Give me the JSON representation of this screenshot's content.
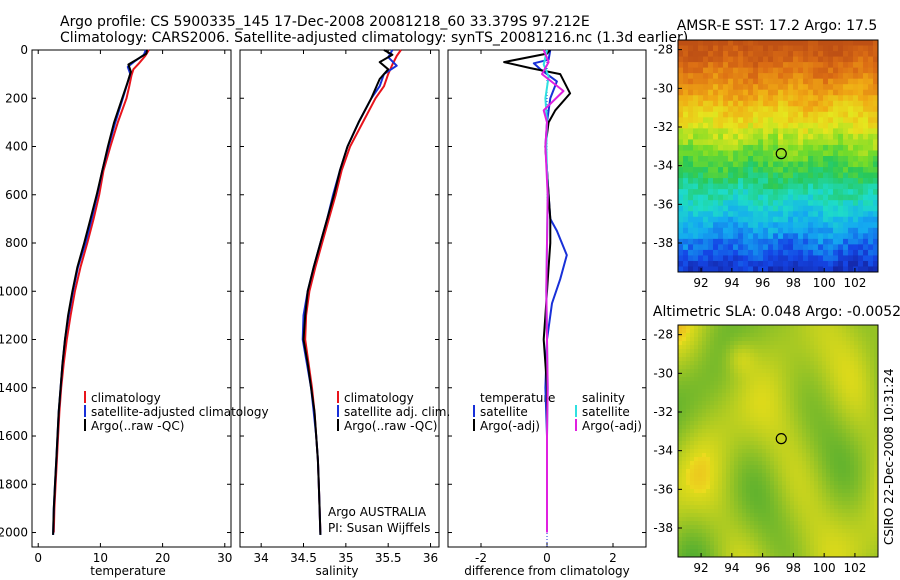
{
  "header": {
    "line1": "Argo profile: CS 5900335_145 17-Dec-2008 20081218_60 33.379S 97.212E",
    "line2": "Climatology: CARS2006. Satellite-adjusted climatology: synTS_20081216.nc (1.3d earlier)"
  },
  "side_text": "CSIRO 22-Dec-2008 10:31:24",
  "colors": {
    "climatology": "#e8141c",
    "satellite": "#1830d8",
    "argo": "#000000",
    "satellite_sal": "#30e0e0",
    "argo_sal": "#e020e0"
  },
  "chart_data": [
    {
      "type": "line",
      "id": "temperature",
      "xlabel": "temperature",
      "xlim": [
        -1,
        31
      ],
      "ylim": [
        2060,
        0
      ],
      "xticks": [
        0,
        10,
        20,
        30
      ],
      "yticks": [
        0,
        200,
        400,
        600,
        800,
        1000,
        1200,
        1400,
        1600,
        1800,
        2000
      ],
      "legend": [
        "climatology",
        "satellite-adjusted climatology",
        "Argo(..raw -QC)"
      ],
      "series": [
        {
          "name": "climatology",
          "color_key": "climatology",
          "points": [
            [
              17.8,
              0
            ],
            [
              17.2,
              25
            ],
            [
              16.2,
              55
            ],
            [
              15.3,
              80
            ],
            [
              15,
              105
            ],
            [
              14.6,
              155
            ],
            [
              14.2,
              200
            ],
            [
              12.8,
              300
            ],
            [
              11.6,
              400
            ],
            [
              10.5,
              500
            ],
            [
              9.8,
              600
            ],
            [
              8.9,
              700
            ],
            [
              7.9,
              800
            ],
            [
              6.8,
              900
            ],
            [
              5.9,
              1000
            ],
            [
              5.2,
              1100
            ],
            [
              4.6,
              1200
            ],
            [
              4.1,
              1300
            ],
            [
              3.7,
              1400
            ],
            [
              3.4,
              1500
            ],
            [
              3.2,
              1600
            ],
            [
              3,
              1700
            ],
            [
              2.8,
              1800
            ],
            [
              2.6,
              1900
            ],
            [
              2.5,
              2000
            ]
          ]
        },
        {
          "name": "satellite-adjusted climatology",
          "color_key": "satellite",
          "points": [
            [
              17.3,
              0
            ],
            [
              17,
              20
            ],
            [
              15.6,
              45
            ],
            [
              14.4,
              70
            ],
            [
              14.8,
              100
            ],
            [
              14.2,
              150
            ],
            [
              13.6,
              200
            ],
            [
              12.4,
              300
            ],
            [
              11.3,
              400
            ],
            [
              10.3,
              500
            ],
            [
              9.5,
              600
            ],
            [
              8.6,
              700
            ],
            [
              7.6,
              800
            ],
            [
              6.4,
              900
            ],
            [
              5.6,
              1000
            ],
            [
              4.9,
              1100
            ],
            [
              4.3,
              1200
            ],
            [
              3.9,
              1300
            ],
            [
              3.6,
              1400
            ],
            [
              3.3,
              1500
            ],
            [
              3.1,
              1600
            ],
            [
              2.9,
              1700
            ],
            [
              2.7,
              1800
            ],
            [
              2.5,
              1900
            ],
            [
              2.4,
              2010
            ]
          ]
        },
        {
          "name": "Argo(..raw -QC)",
          "color_key": "argo",
          "points": [
            [
              17.5,
              0
            ],
            [
              17.4,
              15
            ],
            [
              15.8,
              40
            ],
            [
              14.5,
              60
            ],
            [
              14.9,
              90
            ],
            [
              14.3,
              140
            ],
            [
              13.5,
              200
            ],
            [
              12.2,
              300
            ],
            [
              11.2,
              400
            ],
            [
              10.3,
              500
            ],
            [
              9.4,
              600
            ],
            [
              8.4,
              700
            ],
            [
              7.4,
              800
            ],
            [
              6.3,
              900
            ],
            [
              5.5,
              1000
            ],
            [
              4.8,
              1100
            ],
            [
              4.3,
              1200
            ],
            [
              3.9,
              1300
            ],
            [
              3.6,
              1400
            ],
            [
              3.3,
              1500
            ],
            [
              3.1,
              1600
            ],
            [
              2.9,
              1700
            ],
            [
              2.7,
              1800
            ],
            [
              2.5,
              1900
            ],
            [
              2.4,
              2010
            ]
          ]
        }
      ]
    },
    {
      "type": "line",
      "id": "salinity",
      "xlabel": "salinity",
      "xlim": [
        33.75,
        36.1
      ],
      "ylim": [
        2060,
        0
      ],
      "xticks": [
        34,
        34.5,
        35,
        35.5,
        36
      ],
      "legend": [
        "climatology",
        "satellite adj. clim.",
        "Argo(..raw -QC)"
      ],
      "annotation": [
        "Argo AUSTRALIA",
        "PI: Susan Wijffels"
      ],
      "series": [
        {
          "name": "climatology",
          "color_key": "climatology",
          "points": [
            [
              35.65,
              0
            ],
            [
              35.6,
              25
            ],
            [
              35.55,
              60
            ],
            [
              35.5,
              100
            ],
            [
              35.45,
              150
            ],
            [
              35.35,
              200
            ],
            [
              35.2,
              300
            ],
            [
              35.05,
              400
            ],
            [
              34.95,
              500
            ],
            [
              34.88,
              600
            ],
            [
              34.8,
              700
            ],
            [
              34.72,
              800
            ],
            [
              34.64,
              900
            ],
            [
              34.57,
              1000
            ],
            [
              34.53,
              1100
            ],
            [
              34.52,
              1200
            ],
            [
              34.56,
              1300
            ],
            [
              34.6,
              1400
            ],
            [
              34.63,
              1500
            ],
            [
              34.65,
              1600
            ],
            [
              34.67,
              1700
            ],
            [
              34.68,
              1800
            ],
            [
              34.69,
              1900
            ],
            [
              34.7,
              2000
            ]
          ]
        },
        {
          "name": "satellite adj. clim.",
          "color_key": "satellite",
          "points": [
            [
              35.55,
              0
            ],
            [
              35.5,
              30
            ],
            [
              35.6,
              65
            ],
            [
              35.45,
              100
            ],
            [
              35.4,
              150
            ],
            [
              35.3,
              200
            ],
            [
              35.15,
              300
            ],
            [
              35.02,
              400
            ],
            [
              34.93,
              500
            ],
            [
              34.85,
              600
            ],
            [
              34.78,
              700
            ],
            [
              34.7,
              800
            ],
            [
              34.62,
              900
            ],
            [
              34.55,
              1000
            ],
            [
              34.5,
              1100
            ],
            [
              34.49,
              1200
            ],
            [
              34.54,
              1300
            ],
            [
              34.59,
              1400
            ],
            [
              34.62,
              1500
            ],
            [
              34.65,
              1600
            ],
            [
              34.67,
              1700
            ],
            [
              34.68,
              1800
            ],
            [
              34.69,
              1900
            ],
            [
              34.7,
              2010
            ]
          ]
        },
        {
          "name": "Argo(..raw -QC)",
          "color_key": "argo",
          "points": [
            [
              35.45,
              0
            ],
            [
              35.55,
              20
            ],
            [
              35.4,
              50
            ],
            [
              35.5,
              80
            ],
            [
              35.4,
              120
            ],
            [
              35.35,
              160
            ],
            [
              35.3,
              200
            ],
            [
              35.15,
              300
            ],
            [
              35.02,
              400
            ],
            [
              34.93,
              500
            ],
            [
              34.86,
              600
            ],
            [
              34.78,
              700
            ],
            [
              34.7,
              800
            ],
            [
              34.62,
              900
            ],
            [
              34.55,
              1000
            ],
            [
              34.52,
              1100
            ],
            [
              34.5,
              1200
            ],
            [
              34.55,
              1300
            ],
            [
              34.59,
              1400
            ],
            [
              34.63,
              1500
            ],
            [
              34.65,
              1600
            ],
            [
              34.67,
              1700
            ],
            [
              34.68,
              1800
            ],
            [
              34.69,
              1900
            ],
            [
              34.7,
              2010
            ]
          ]
        }
      ]
    },
    {
      "type": "line",
      "id": "difference",
      "xlabel": "difference from climatology",
      "xlim": [
        -3,
        3
      ],
      "ylim": [
        2060,
        0
      ],
      "xticks": [
        -2,
        0,
        2
      ],
      "legend_temp": [
        "temperature",
        "satellite",
        "Argo(-adj)"
      ],
      "legend_sal": [
        "salinity",
        "satellite",
        "Argo(-adj)"
      ],
      "series": [
        {
          "name": "temperature satellite",
          "color_key": "satellite",
          "points": [
            [
              0.1,
              0
            ],
            [
              0.05,
              40
            ],
            [
              -0.4,
              55
            ],
            [
              -0.2,
              80
            ],
            [
              0.3,
              130
            ],
            [
              0.1,
              200
            ],
            [
              0,
              300
            ],
            [
              -0.05,
              400
            ],
            [
              0,
              500
            ],
            [
              0.05,
              600
            ],
            [
              0.1,
              700
            ],
            [
              0.3,
              750
            ],
            [
              0.6,
              850
            ],
            [
              0.4,
              950
            ],
            [
              0.15,
              1050
            ],
            [
              0,
              1200
            ],
            [
              -0.05,
              1400
            ],
            [
              0,
              1600
            ],
            [
              0,
              1800
            ],
            [
              0,
              2000
            ]
          ]
        },
        {
          "name": "temperature Argo(-adj)",
          "color_key": "argo",
          "points": [
            [
              0.1,
              0
            ],
            [
              0,
              15
            ],
            [
              -1.3,
              50
            ],
            [
              -0.5,
              75
            ],
            [
              0.4,
              100
            ],
            [
              0.7,
              180
            ],
            [
              0.25,
              250
            ],
            [
              0.05,
              300
            ],
            [
              -0.05,
              400
            ],
            [
              0,
              500
            ],
            [
              0.05,
              600
            ],
            [
              0.1,
              700
            ],
            [
              0.1,
              800
            ],
            [
              0.05,
              900
            ],
            [
              0,
              1000
            ],
            [
              -0.05,
              1100
            ],
            [
              -0.1,
              1200
            ],
            [
              -0.05,
              1300
            ],
            [
              0,
              1400
            ],
            [
              0,
              1600
            ],
            [
              0,
              1800
            ],
            [
              0,
              2000
            ]
          ]
        },
        {
          "name": "salinity satellite",
          "color_key": "satellite_sal",
          "points": [
            [
              0,
              0
            ],
            [
              -0.1,
              60
            ],
            [
              0.05,
              110
            ],
            [
              -0.05,
              200
            ],
            [
              0,
              300
            ],
            [
              -0.02,
              400
            ],
            [
              0.02,
              600
            ],
            [
              0,
              800
            ],
            [
              -0.02,
              1000
            ],
            [
              0,
              1200
            ],
            [
              0.02,
              1400
            ],
            [
              0,
              1600
            ],
            [
              0,
              1800
            ],
            [
              0,
              2000
            ]
          ]
        },
        {
          "name": "salinity Argo(-adj)",
          "color_key": "argo_sal",
          "points": [
            [
              -0.1,
              0
            ],
            [
              0.05,
              50
            ],
            [
              -0.15,
              100
            ],
            [
              0.5,
              170
            ],
            [
              -0.1,
              250
            ],
            [
              0,
              300
            ],
            [
              -0.05,
              400
            ],
            [
              0.02,
              600
            ],
            [
              0,
              800
            ],
            [
              -0.02,
              1000
            ],
            [
              0,
              1200
            ],
            [
              0.02,
              1400
            ],
            [
              0,
              1600
            ],
            [
              0,
              1800
            ],
            [
              0,
              2000
            ]
          ]
        }
      ]
    },
    {
      "type": "heatmap",
      "id": "sst_map",
      "title": "AMSR-E SST: 17.2 Argo: 17.5",
      "xlim": [
        90.5,
        103.5
      ],
      "ylim": [
        -39.5,
        -27.5
      ],
      "xticks": [
        92,
        94,
        96,
        98,
        100,
        102
      ],
      "yticks": [
        -28,
        -30,
        -32,
        -34,
        -36,
        -38
      ],
      "marker": [
        97.212,
        -33.379
      ],
      "grid": [
        40,
        42
      ]
    },
    {
      "type": "heatmap",
      "id": "sla_map",
      "title": "Altimetric SLA: 0.048 Argo: -0.0052",
      "xlim": [
        90.5,
        103.5
      ],
      "ylim": [
        -39.5,
        -27.5
      ],
      "xticks": [
        92,
        94,
        96,
        98,
        100,
        102
      ],
      "yticks": [
        -28,
        -30,
        -32,
        -34,
        -36,
        -38
      ],
      "marker": [
        97.212,
        -33.379
      ]
    }
  ]
}
